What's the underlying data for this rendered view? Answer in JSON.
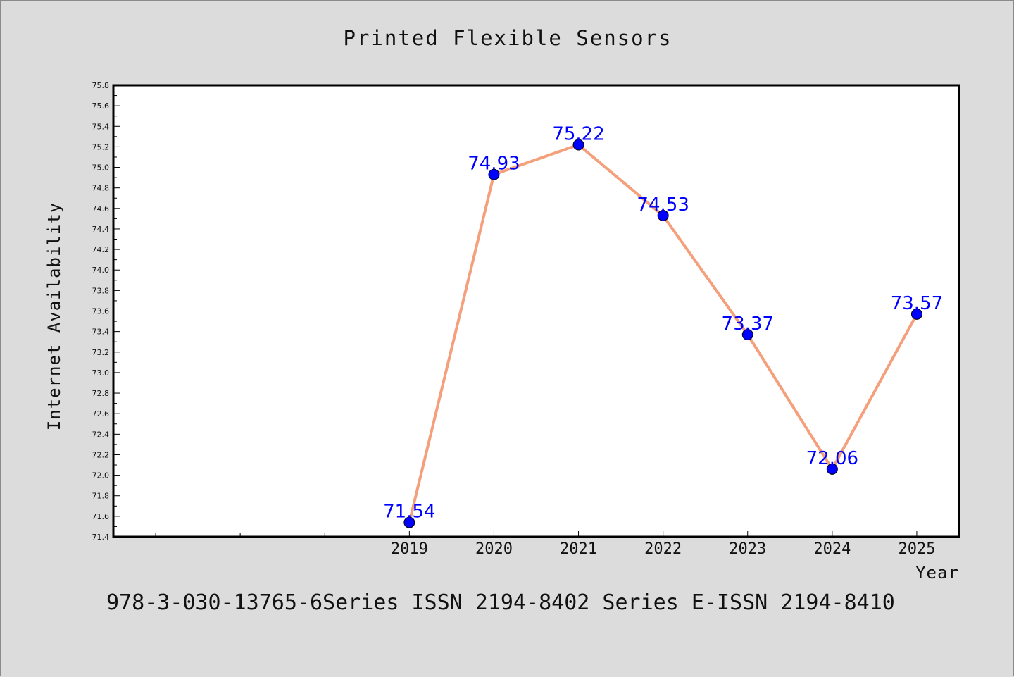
{
  "chart_data": {
    "type": "line",
    "title": "Printed Flexible Sensors",
    "xlabel": "Year",
    "ylabel": "Internet Availability",
    "categories": [
      "2019",
      "2020",
      "2021",
      "2022",
      "2023",
      "2024",
      "2025"
    ],
    "series": [
      {
        "values": [
          71.54,
          74.93,
          75.22,
          74.53,
          73.37,
          72.06,
          73.57
        ]
      }
    ],
    "data_labels": [
      "71.54",
      "74.93",
      "75.22",
      "74.53",
      "73.37",
      "72.06",
      "73.57"
    ],
    "ylim": [
      71.4,
      75.8
    ],
    "yticks": [
      "71.4",
      "71.6",
      "71.8",
      "72.0",
      "72.2",
      "72.4",
      "72.6",
      "72.8",
      "73.0",
      "73.2",
      "73.4",
      "73.6",
      "73.8",
      "74.0",
      "74.2",
      "74.4",
      "74.6",
      "74.8",
      "75.0",
      "75.2",
      "75.4",
      "75.6",
      "75.8"
    ],
    "grid": false,
    "legend": "none",
    "colors": {
      "line": "#f4a07c",
      "marker": "#0000ff",
      "labels": "#0000ff",
      "background": "#dcdcdc",
      "plot_background": "#ffffff"
    }
  },
  "footer": "978-3-030-13765-6Series ISSN 2194-8402 Series E-ISSN 2194-8410"
}
